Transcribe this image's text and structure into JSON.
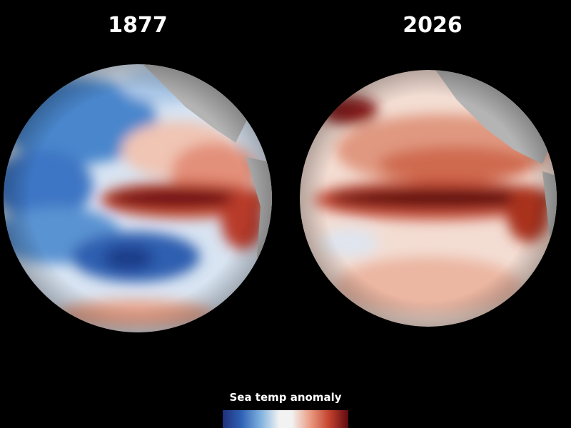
{
  "panels": [
    {
      "title": "1877"
    },
    {
      "title": "2026"
    }
  ],
  "legend": {
    "title": "Sea temp anomaly"
  }
}
